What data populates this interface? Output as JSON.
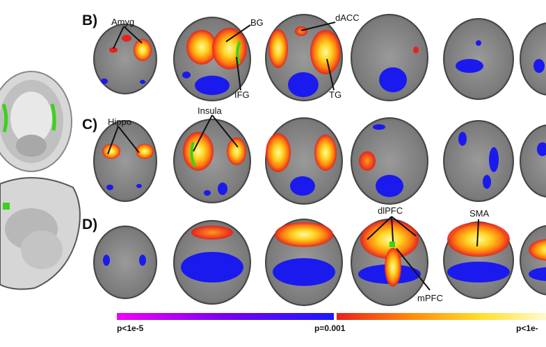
{
  "panels": {
    "b": "B)",
    "c": "C)",
    "d": "D)"
  },
  "labels": {
    "amyg": "Amyg",
    "bg": "BG",
    "dacc": "dACC",
    "ifg": "IFG",
    "tg": "TG",
    "hippo": "Hippo",
    "insula": "Insula",
    "dlpfc": "dlPFC",
    "sma": "SMA",
    "mpfc": "mPFC"
  },
  "colorbar": {
    "left_label": "p<1e-5",
    "mid_label": "p=0.001",
    "right_label": "p<1e-"
  }
}
